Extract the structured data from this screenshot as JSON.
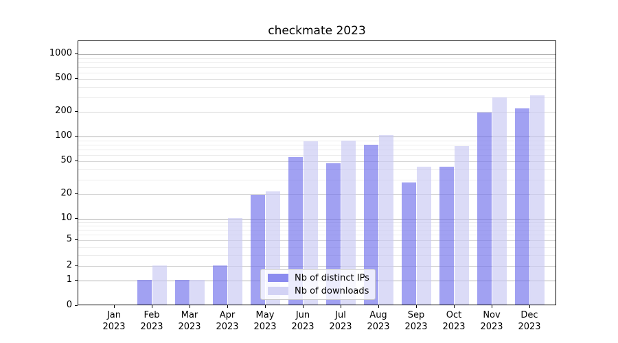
{
  "title": "checkmate 2023",
  "legend": {
    "items": [
      {
        "label": "Nb of distinct IPs",
        "color": "#6e6eeb"
      },
      {
        "label": "Nb of downloads",
        "color": "#c8c8f3"
      }
    ]
  },
  "chart_data": {
    "type": "bar",
    "title": "checkmate 2023",
    "categories": [
      "Jan\n2023",
      "Feb\n2023",
      "Mar\n2023",
      "Apr\n2023",
      "May\n2023",
      "Jun\n2023",
      "Jul\n2023",
      "Aug\n2023",
      "Sep\n2023",
      "Oct\n2023",
      "Nov\n2023",
      "Dec\n2023"
    ],
    "series": [
      {
        "name": "Nb of distinct IPs",
        "color": "#6e6eeb",
        "values": [
          0,
          1,
          1,
          2,
          19,
          55,
          46,
          77,
          27,
          42,
          193,
          215
        ]
      },
      {
        "name": "Nb of downloads",
        "color": "#c8c8f3",
        "values": [
          0,
          2,
          1,
          10,
          21,
          85,
          88,
          102,
          42,
          75,
          290,
          310
        ]
      }
    ],
    "xlabel": "",
    "ylabel": "",
    "yscale": "symlog",
    "ylim": [
      0,
      1500
    ],
    "yticks": [
      0,
      1,
      2,
      5,
      10,
      20,
      50,
      100,
      200,
      500,
      1000
    ],
    "yticks_minor": [
      3,
      4,
      6,
      7,
      8,
      9,
      30,
      40,
      60,
      70,
      80,
      90,
      300,
      400,
      600,
      700,
      800,
      900
    ],
    "grid": true,
    "legend_position": "lower center"
  }
}
